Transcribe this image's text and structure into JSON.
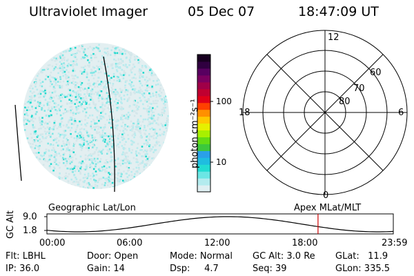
{
  "header": {
    "instrument": "Ultraviolet Imager",
    "date": "05 Dec 07",
    "time": "18:47:09 UT"
  },
  "colorbar": {
    "label": "photon cm⁻²s⁻¹",
    "ticks": [
      {
        "value": 10,
        "label": "10"
      },
      {
        "value": 100,
        "label": "100"
      }
    ],
    "colors": [
      "#dfeff2",
      "#b3ebee",
      "#6ce6e4",
      "#22dcd2",
      "#1fbde0",
      "#2aa0e8",
      "#3cc83c",
      "#64dc14",
      "#a8f000",
      "#e6f000",
      "#ffc800",
      "#ff9000",
      "#ff4000",
      "#e00018",
      "#c00030",
      "#a00048",
      "#7c0060",
      "#580060",
      "#300040",
      "#180020"
    ]
  },
  "polar": {
    "mlt_labels": {
      "top": "12",
      "left": "18",
      "right": "6",
      "bottom": "0"
    },
    "lat_labels": [
      "60",
      "70",
      "80"
    ]
  },
  "timeline": {
    "left_label": "Geographic Lat/Lon",
    "right_label": "Apex MLat/MLT",
    "y_axis_label": "GC Alt",
    "y_ticks": [
      "9.0",
      "1.8"
    ],
    "x_ticks": [
      "00:00",
      "06:00",
      "12:00",
      "18:00",
      "23:59"
    ],
    "current_time_hours": 18.786
  },
  "info": {
    "filter": "Flt: LBHL",
    "ip": "IP: 36.0",
    "door": "Door: Open",
    "gain": "Gain: 14",
    "mode": "Mode: Normal",
    "dsp": "Dsp:     4.7",
    "gc_alt": "GC Alt: 3.0 Re",
    "seq": "Seq: 39",
    "glat": "GLat:   11.9",
    "glon": "GLon: 335.5"
  }
}
